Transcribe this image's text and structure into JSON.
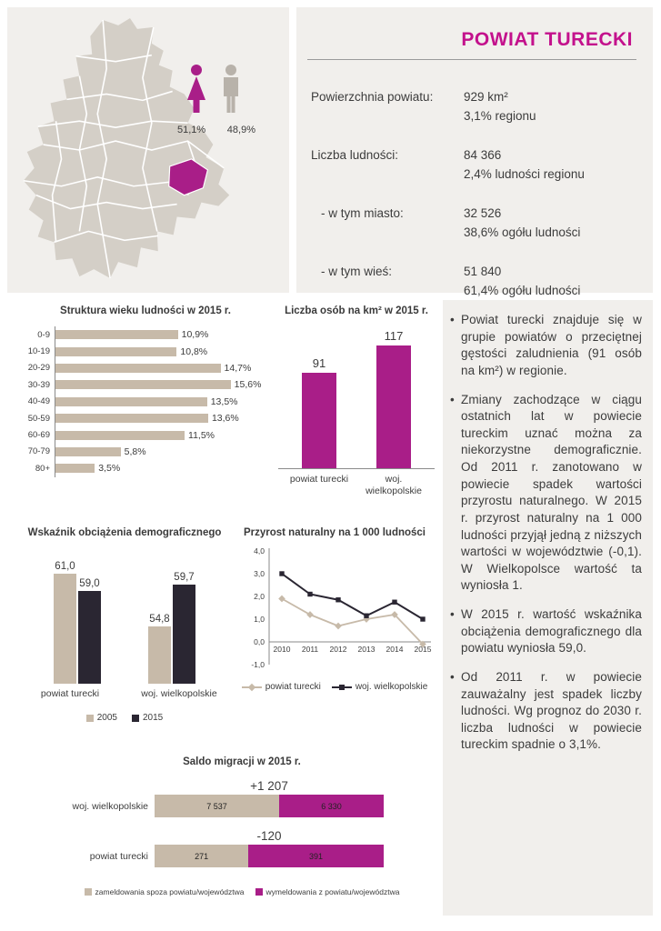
{
  "colors": {
    "panel_bg": "#f1efec",
    "map_gray": "#d4cfc7",
    "beige": "#c7baa9",
    "dark": "#2a2632",
    "magenta_title": "#c3118c",
    "magenta_bar": "#a91e88",
    "male_gray": "#b8b2aa",
    "axis": "#8a8a8a",
    "text": "#3c3c3c"
  },
  "header": {
    "title": "POWIAT TURECKI",
    "gender": {
      "female_pct": "51,1%",
      "male_pct": "48,9%"
    },
    "stats": [
      {
        "label": "Powierzchnia powiatu:",
        "value": "929 km²",
        "sub": "3,1% regionu"
      },
      {
        "label": "Liczba ludności:",
        "value": "84 366",
        "sub": "2,4% ludności regionu"
      },
      {
        "label": "- w tym  miasto:",
        "value": "32 526",
        "sub": "38,6% ogółu ludności"
      },
      {
        "label": "- w tym wieś:",
        "value": "51 840",
        "sub": "61,4% ogółu ludności"
      }
    ]
  },
  "chart_data": [
    {
      "id": "age_structure",
      "type": "bar",
      "orientation": "horizontal",
      "title": "Struktura wieku ludności w 2015 r.",
      "categories": [
        "0-9",
        "10-19",
        "20-29",
        "30-39",
        "40-49",
        "50-59",
        "60-69",
        "70-79",
        "80+"
      ],
      "values": [
        10.9,
        10.8,
        14.7,
        15.6,
        13.5,
        13.6,
        11.5,
        5.8,
        3.5
      ],
      "value_labels": [
        "10,9%",
        "10,8%",
        "14,7%",
        "15,6%",
        "13,5%",
        "13,6%",
        "11,5%",
        "5,8%",
        "3,5%"
      ],
      "xlim": [
        0,
        16
      ]
    },
    {
      "id": "population_density",
      "type": "bar",
      "title": "Liczba osób na km² w 2015 r.",
      "categories": [
        "powiat turecki",
        "woj. wielkopolskie"
      ],
      "values": [
        91,
        117
      ],
      "value_labels": [
        "91",
        "117"
      ],
      "ylim": [
        0,
        130
      ]
    },
    {
      "id": "dependency_ratio",
      "type": "bar",
      "title": "Wskaźnik obciążenia demograficznego",
      "categories": [
        "powiat turecki",
        "woj. wielkopolskie"
      ],
      "series": [
        {
          "name": "2005",
          "values": [
            61.0,
            54.8
          ],
          "labels": [
            "61,0",
            "54,8"
          ]
        },
        {
          "name": "2015",
          "values": [
            59.0,
            59.7
          ],
          "labels": [
            "59,0",
            "59,7"
          ]
        }
      ],
      "ylim": [
        48,
        62
      ],
      "legend_position": "bottom"
    },
    {
      "id": "natural_increase",
      "type": "line",
      "title": "Przyrost naturalny na 1 000 ludności",
      "x": [
        2010,
        2011,
        2012,
        2013,
        2014,
        2015
      ],
      "series": [
        {
          "name": "powiat turecki",
          "marker": "diamond",
          "values": [
            1.9,
            1.2,
            0.7,
            1.0,
            1.2,
            -0.1
          ]
        },
        {
          "name": "woj. wielkopolskie",
          "marker": "square",
          "values": [
            3.0,
            2.1,
            1.85,
            1.15,
            1.75,
            1.0
          ]
        }
      ],
      "ylim": [
        -1.0,
        4.0
      ],
      "ytick_labels": [
        "4,0",
        "3,0",
        "2,0",
        "1,0",
        "0,0",
        "-1,0"
      ],
      "legend_position": "bottom"
    },
    {
      "id": "migration_balance",
      "type": "bar",
      "subtype": "stacked-horizontal-100pct",
      "title": "Saldo migracji w 2015 r.",
      "categories": [
        "woj. wielkopolskie",
        "powiat turecki"
      ],
      "series": [
        {
          "name": "zameldowania spoza powiatu/województwa",
          "values": [
            7537,
            271
          ],
          "labels": [
            "7 537",
            "271"
          ]
        },
        {
          "name": "wymeldowania z powiatu/województwa",
          "values": [
            6330,
            391
          ],
          "labels": [
            "6 330",
            "391"
          ]
        }
      ],
      "net_labels": [
        "+1 207",
        "-120"
      ],
      "legend_position": "bottom"
    }
  ],
  "notes": {
    "bullets": [
      "Powiat turecki znajduje się w grupie powiatów o przeciętnej gęstości zaludnienia (91 osób na km²) w regionie.",
      "Zmiany zachodzące w ciągu ostatnich lat w powiecie tureckim uznać można za niekorzystne demograficznie. Od 2011 r. zanotowano w powiecie spadek wartości przyrostu naturalnego. W 2015 r. przyrost naturalny na 1 000 ludności przyjął jedną z niższych wartości w województwie (-0,1). W Wielkopolsce wartość ta wyniosła 1.",
      "W 2015 r. wartość wskaźnika obciążenia demograficznego dla powiatu wyniosła 59,0.",
      "Od 2011 r. w powiecie zauważalny jest spadek liczby ludności. Wg prognoz do 2030 r. liczba ludności w powiecie tureckim spadnie o 3,1%."
    ]
  }
}
